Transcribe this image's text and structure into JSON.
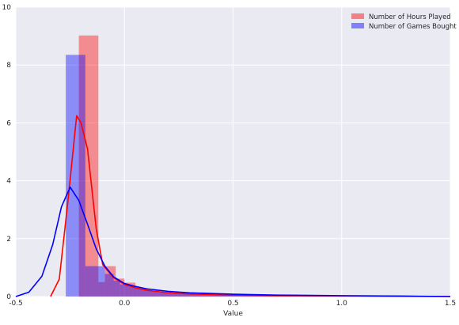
{
  "chart_data": {
    "type": "histogram",
    "title": "",
    "xlabel": "Value",
    "ylabel": "",
    "xlim": [
      -0.5,
      1.5
    ],
    "ylim": [
      0,
      10
    ],
    "x_ticks": [
      -0.5,
      0.0,
      0.5,
      1.0,
      1.5
    ],
    "x_tick_labels": [
      "-0.5",
      "0.0",
      "0.5",
      "1.0",
      "1.5"
    ],
    "y_ticks": [
      0,
      2,
      4,
      6,
      8,
      10
    ],
    "y_tick_labels": [
      "0",
      "2",
      "4",
      "6",
      "8",
      "10"
    ],
    "grid": true,
    "legend_position": "top-right",
    "series": [
      {
        "name": "Number of Hours Played",
        "color": "#ff0000",
        "bars": [
          {
            "x0": -0.21,
            "x1": -0.12,
            "value": 9.02
          },
          {
            "x0": -0.12,
            "x1": -0.09,
            "value": 0.5
          },
          {
            "x0": -0.09,
            "x1": -0.04,
            "value": 1.05
          },
          {
            "x0": -0.04,
            "x1": 0.0,
            "value": 0.62
          },
          {
            "x0": 0.0,
            "x1": 0.05,
            "value": 0.48
          },
          {
            "x0": 0.05,
            "x1": 0.1,
            "value": 0.3
          },
          {
            "x0": 0.1,
            "x1": 0.15,
            "value": 0.2
          },
          {
            "x0": 0.15,
            "x1": 0.2,
            "value": 0.14
          },
          {
            "x0": 0.2,
            "x1": 0.3,
            "value": 0.1
          },
          {
            "x0": 0.3,
            "x1": 0.4,
            "value": 0.07
          },
          {
            "x0": 0.4,
            "x1": 0.6,
            "value": 0.05
          },
          {
            "x0": 0.6,
            "x1": 1.0,
            "value": 0.03
          },
          {
            "x0": 1.0,
            "x1": 1.5,
            "value": 0.01
          }
        ],
        "kde": {
          "x": [
            -0.34,
            -0.3,
            -0.26,
            -0.22,
            -0.2,
            -0.17,
            -0.13,
            -0.1,
            -0.05,
            0.0,
            0.05,
            0.1,
            0.2,
            0.3,
            0.5,
            0.7,
            1.0,
            1.2,
            1.5
          ],
          "y": [
            0.0,
            0.6,
            3.3,
            6.25,
            6.0,
            5.1,
            2.35,
            1.1,
            0.65,
            0.42,
            0.3,
            0.22,
            0.13,
            0.09,
            0.05,
            0.03,
            0.02,
            0.01,
            0.0
          ]
        }
      },
      {
        "name": "Number of Games Bought",
        "color": "#0000ff",
        "bars": [
          {
            "x0": -0.27,
            "x1": -0.18,
            "value": 8.35
          },
          {
            "x0": -0.18,
            "x1": -0.09,
            "value": 1.05
          },
          {
            "x0": -0.09,
            "x1": -0.05,
            "value": 0.78
          },
          {
            "x0": -0.05,
            "x1": -0.02,
            "value": 0.55
          },
          {
            "x0": -0.02,
            "x1": 0.02,
            "value": 0.42
          },
          {
            "x0": 0.02,
            "x1": 0.06,
            "value": 0.34
          },
          {
            "x0": 0.06,
            "x1": 0.11,
            "value": 0.26
          },
          {
            "x0": 0.11,
            "x1": 0.16,
            "value": 0.2
          },
          {
            "x0": 0.16,
            "x1": 0.22,
            "value": 0.16
          },
          {
            "x0": 0.22,
            "x1": 0.3,
            "value": 0.12
          },
          {
            "x0": 0.3,
            "x1": 0.45,
            "value": 0.08
          },
          {
            "x0": 0.45,
            "x1": 0.7,
            "value": 0.05
          },
          {
            "x0": 0.7,
            "x1": 1.1,
            "value": 0.03
          },
          {
            "x0": 1.1,
            "x1": 1.5,
            "value": 0.01
          }
        ],
        "kde": {
          "x": [
            -0.5,
            -0.44,
            -0.38,
            -0.33,
            -0.29,
            -0.25,
            -0.21,
            -0.17,
            -0.13,
            -0.09,
            -0.05,
            0.0,
            0.05,
            0.1,
            0.2,
            0.3,
            0.5,
            0.7,
            1.0,
            1.2,
            1.5
          ],
          "y": [
            0.0,
            0.15,
            0.7,
            1.8,
            3.1,
            3.78,
            3.32,
            2.5,
            1.65,
            1.05,
            0.68,
            0.45,
            0.35,
            0.27,
            0.18,
            0.13,
            0.08,
            0.05,
            0.03,
            0.02,
            0.0
          ]
        }
      }
    ]
  }
}
